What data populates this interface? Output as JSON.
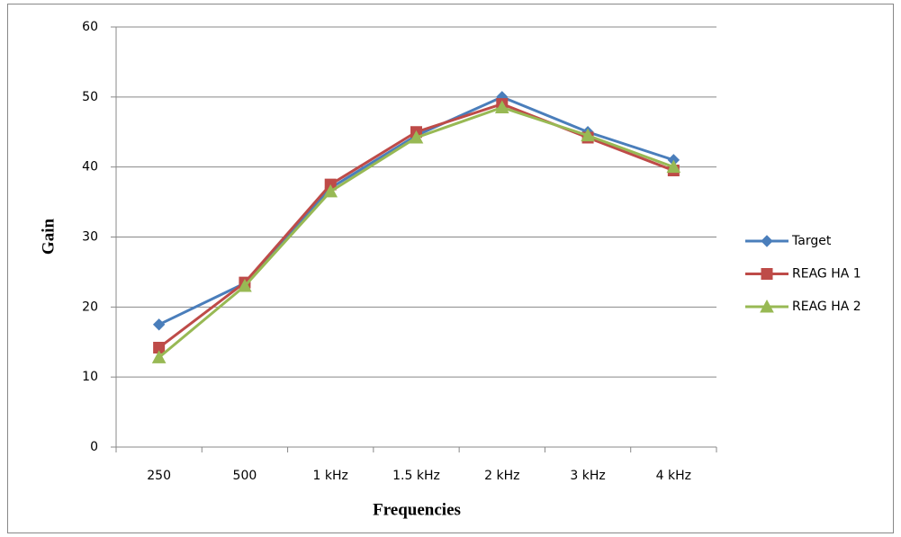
{
  "chart_data": {
    "type": "line",
    "x_label": "Frequencies",
    "y_label": "Gain",
    "categories": [
      "250",
      "500",
      "1 kHz",
      "1.5 kHz",
      "2 kHz",
      "3 kHz",
      "4 kHz"
    ],
    "series": [
      {
        "name": "Target",
        "color": "#4a7ebb",
        "marker": "diamond",
        "values": [
          17.5,
          23.4,
          37,
          44.5,
          50,
          45,
          41
        ]
      },
      {
        "name": "REAG HA 1",
        "color": "#be4b48",
        "marker": "square",
        "values": [
          14.2,
          23.5,
          37.5,
          45,
          49,
          44.2,
          39.5
        ]
      },
      {
        "name": "REAG HA 2",
        "color": "#98b954",
        "marker": "triangle",
        "values": [
          12.8,
          23,
          36.5,
          44.2,
          48.5,
          44.5,
          40
        ]
      }
    ],
    "ylim": [
      0,
      60
    ],
    "yticks": [
      0,
      10,
      20,
      30,
      40,
      50,
      60
    ],
    "grid": true,
    "legend": "right"
  }
}
